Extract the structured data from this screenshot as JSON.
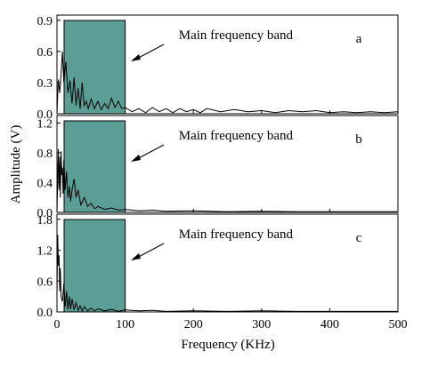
{
  "chart_data": {
    "type": "line",
    "xlabel": "Frequency (KHz)",
    "ylabel": "Amplitude (V)",
    "xlim": [
      0,
      500
    ],
    "x_ticks": [
      "0",
      "100",
      "200",
      "300",
      "400",
      "500"
    ],
    "grid": false,
    "highlight_band": {
      "x_start": 0,
      "x_end": 100,
      "color": "#5a9e96"
    },
    "panels": [
      {
        "letter": "a",
        "ylim": [
          0,
          0.95
        ],
        "y_ticks": [
          "0.0",
          "0.3",
          "0.6",
          "0.9"
        ],
        "y_tick_values": [
          0,
          0.3,
          0.6,
          0.9
        ],
        "annotation": "Main frequency band",
        "x": [
          0,
          2,
          4,
          6,
          8,
          10,
          13,
          16,
          19,
          22,
          25,
          28,
          31,
          34,
          37,
          40,
          43,
          46,
          50,
          55,
          60,
          65,
          70,
          75,
          80,
          85,
          90,
          95,
          100,
          110,
          120,
          130,
          140,
          150,
          160,
          170,
          180,
          190,
          200,
          210,
          220,
          240,
          260,
          280,
          300,
          320,
          340,
          360,
          380,
          400,
          420,
          440,
          460,
          480,
          500
        ],
        "y": [
          0.0,
          0.33,
          0.2,
          0.38,
          0.6,
          0.3,
          0.5,
          0.2,
          0.32,
          0.1,
          0.35,
          0.08,
          0.25,
          0.05,
          0.3,
          0.08,
          0.12,
          0.05,
          0.14,
          0.05,
          0.12,
          0.04,
          0.1,
          0.05,
          0.15,
          0.06,
          0.12,
          0.05,
          0.06,
          0.02,
          0.05,
          0.01,
          0.06,
          0.02,
          0.05,
          0.01,
          0.05,
          0.02,
          0.04,
          0.01,
          0.05,
          0.02,
          0.04,
          0.02,
          0.03,
          0.01,
          0.03,
          0.02,
          0.03,
          0.01,
          0.02,
          0.01,
          0.02,
          0.01,
          0.02
        ]
      },
      {
        "letter": "b",
        "ylim": [
          0,
          1.3
        ],
        "y_ticks": [
          "0.0",
          "0.4",
          "0.8",
          "1.2"
        ],
        "y_tick_values": [
          0,
          0.4,
          0.8,
          1.2
        ],
        "annotation": "Main frequency band",
        "x": [
          0,
          1,
          2,
          3,
          4,
          5,
          6,
          7,
          8,
          9,
          10,
          12,
          14,
          16,
          18,
          20,
          22,
          25,
          28,
          31,
          35,
          40,
          45,
          50,
          55,
          60,
          70,
          80,
          90,
          100,
          120,
          140,
          160,
          200,
          250,
          300,
          350,
          400,
          450,
          500
        ],
        "y": [
          0.0,
          0.4,
          0.85,
          0.3,
          0.75,
          0.2,
          0.82,
          0.5,
          0.6,
          0.25,
          0.7,
          0.3,
          0.55,
          0.2,
          0.35,
          0.15,
          0.3,
          0.45,
          0.2,
          0.3,
          0.1,
          0.2,
          0.08,
          0.12,
          0.05,
          0.08,
          0.04,
          0.06,
          0.03,
          0.04,
          0.02,
          0.03,
          0.015,
          0.02,
          0.01,
          0.015,
          0.01,
          0.01,
          0.01,
          0.01
        ]
      },
      {
        "letter": "c",
        "ylim": [
          0,
          1.9
        ],
        "y_ticks": [
          "0.0",
          "0.6",
          "1.2",
          "1.8"
        ],
        "y_tick_values": [
          0,
          0.6,
          1.2,
          1.8
        ],
        "annotation": "Main frequency band",
        "x": [
          0,
          1,
          2,
          3,
          4,
          5,
          6,
          8,
          10,
          12,
          14,
          16,
          18,
          20,
          22,
          25,
          28,
          31,
          34,
          37,
          40,
          45,
          50,
          55,
          60,
          70,
          80,
          90,
          100,
          120,
          140,
          160,
          200,
          250,
          300,
          350,
          400,
          450,
          500
        ],
        "y": [
          0.3,
          1.5,
          0.9,
          1.1,
          0.4,
          0.85,
          0.3,
          0.2,
          0.55,
          0.1,
          0.4,
          0.05,
          0.3,
          0.05,
          0.25,
          0.04,
          0.18,
          0.03,
          0.12,
          0.02,
          0.1,
          0.02,
          0.07,
          0.02,
          0.06,
          0.02,
          0.05,
          0.01,
          0.04,
          0.02,
          0.03,
          0.01,
          0.02,
          0.01,
          0.02,
          0.01,
          0.01,
          0.01,
          0.01
        ]
      }
    ]
  }
}
